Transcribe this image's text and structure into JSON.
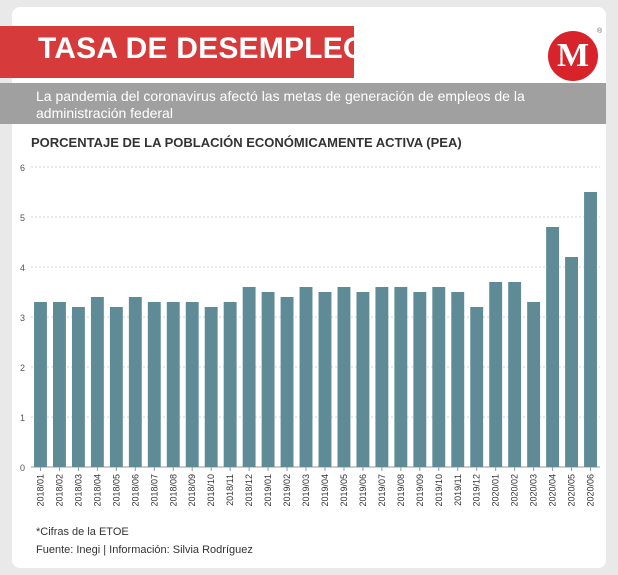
{
  "header": {
    "title": "TASA DE DESEMPLEO*",
    "subtitle": "La pandemia del coronavirus afectó las metas de generación de empleos de la administración federal",
    "logo_letter": "M",
    "logo_mark": "®",
    "brand_color": "#d63a3a"
  },
  "chart_data": {
    "type": "bar",
    "title": "PORCENTAJE DE LA POBLACIÓN ECONÓMICAMENTE ACTIVA (PEA)",
    "xlabel": "",
    "ylabel": "",
    "ylim": [
      0,
      6
    ],
    "yticks": [
      "0",
      "1",
      "2",
      "3",
      "4",
      "5",
      "6"
    ],
    "grid": true,
    "bar_color": "#5e8b96",
    "categories": [
      "2018/01",
      "2018/02",
      "2018/03",
      "2018/04",
      "2018/05",
      "2018/06",
      "2018/07",
      "2018/08",
      "2018/09",
      "2018/10",
      "2018/11",
      "2018/12",
      "2019/01",
      "2019/02",
      "2019/03",
      "2019/04",
      "2019/05",
      "2019/06",
      "2019/07",
      "2019/08",
      "2019/09",
      "2019/10",
      "2019/11",
      "2019/12",
      "2020/01",
      "2020/02",
      "2020/03",
      "2020/04",
      "2020/05",
      "2020/06"
    ],
    "values": [
      3.3,
      3.3,
      3.2,
      3.4,
      3.2,
      3.4,
      3.3,
      3.3,
      3.3,
      3.2,
      3.3,
      3.6,
      3.5,
      3.4,
      3.6,
      3.5,
      3.6,
      3.5,
      3.6,
      3.6,
      3.5,
      3.6,
      3.5,
      3.2,
      3.7,
      3.7,
      3.3,
      4.8,
      4.2,
      5.5
    ]
  },
  "footer": {
    "note": "*Cifras de la ETOE",
    "source": "Fuente: Inegi | Información: Silvia Rodríguez"
  }
}
